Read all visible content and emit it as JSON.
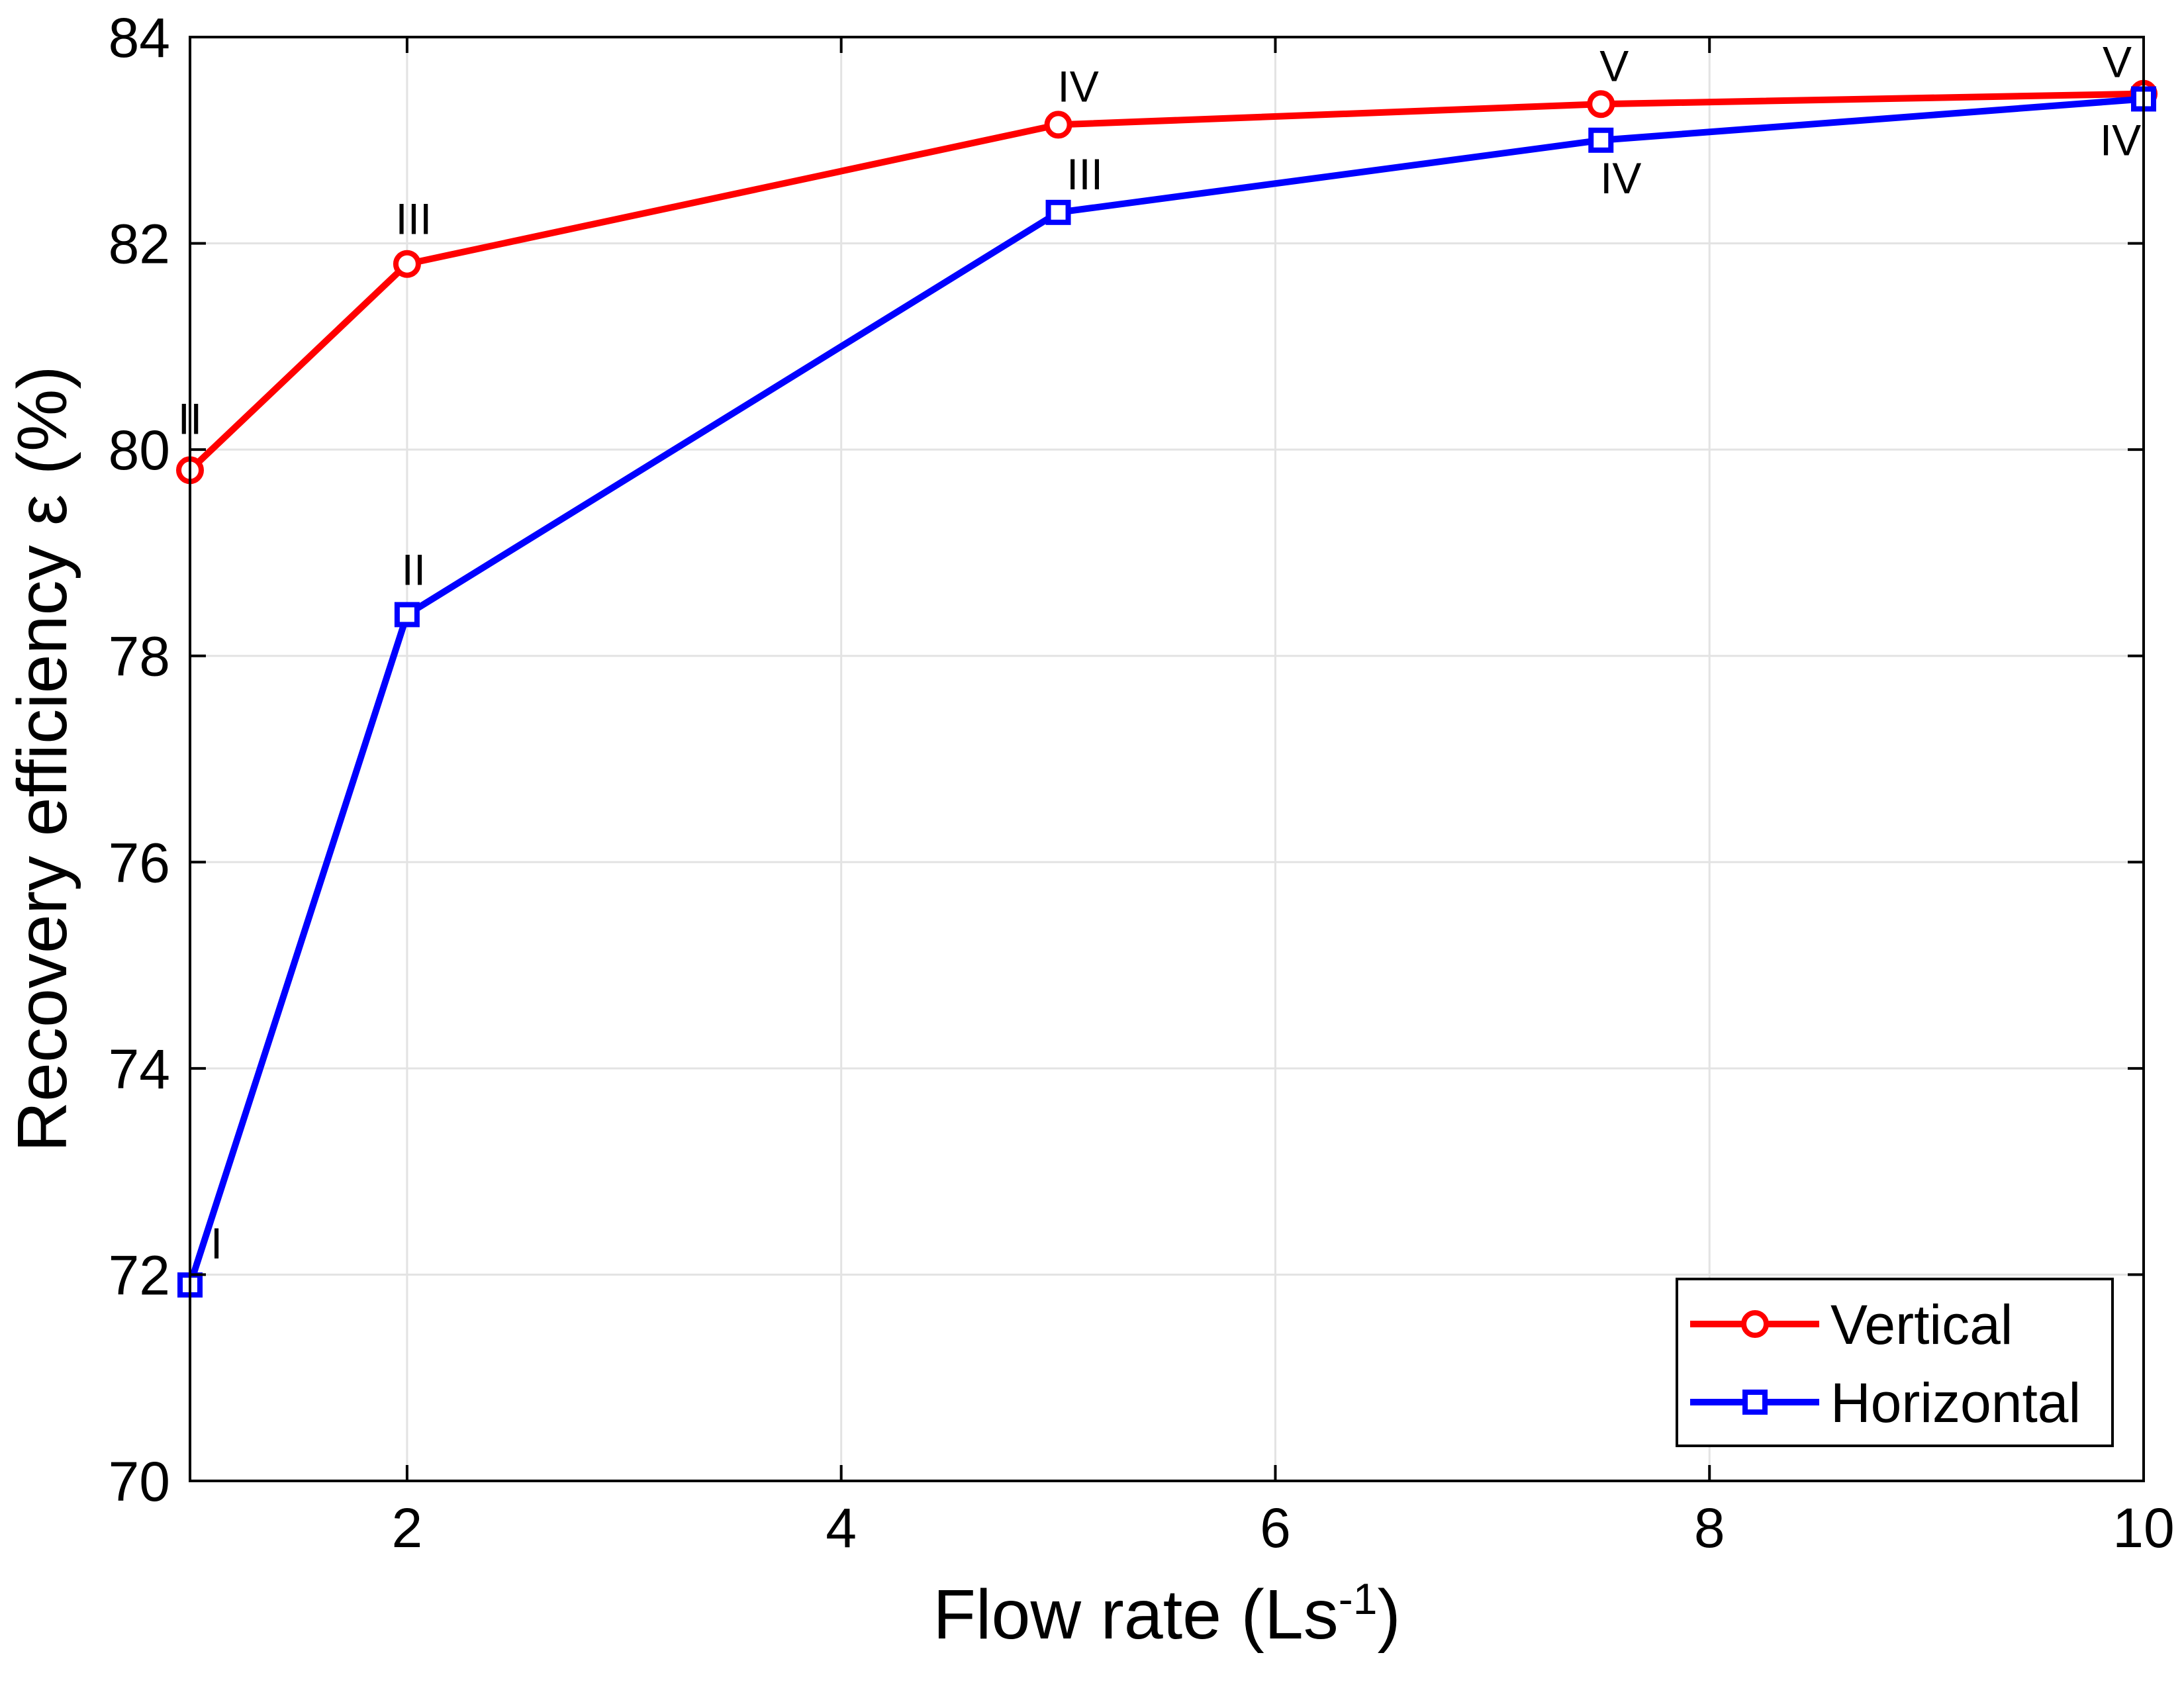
{
  "chart_data": {
    "type": "line",
    "title": "",
    "xlabel": "Flow rate (Ls",
    "xlabel_superscript": "-1",
    "xlabel_suffix": ")",
    "ylabel": "Recovery efficiency ε (%)",
    "xlim": [
      1,
      10
    ],
    "ylim": [
      70,
      84
    ],
    "xticks": [
      2,
      4,
      6,
      8,
      10
    ],
    "yticks": [
      70,
      72,
      74,
      76,
      78,
      80,
      82,
      84
    ],
    "grid": true,
    "legend_position": "bottom-right",
    "series": [
      {
        "name": "Vertical",
        "color": "#ff0000",
        "marker": "circle",
        "x": [
          1,
          2,
          5,
          7.5,
          10
        ],
        "y": [
          79.8,
          81.8,
          83.15,
          83.35,
          83.45
        ],
        "point_labels": [
          "II",
          "III",
          "IV",
          "V",
          "V"
        ]
      },
      {
        "name": "Horizontal",
        "color": "#0000ff",
        "marker": "square",
        "x": [
          1,
          2,
          5,
          7.5,
          10
        ],
        "y": [
          71.9,
          78.4,
          82.3,
          83.0,
          83.4
        ],
        "point_labels": [
          "I",
          "II",
          "III",
          "IV",
          "IV"
        ]
      }
    ]
  }
}
